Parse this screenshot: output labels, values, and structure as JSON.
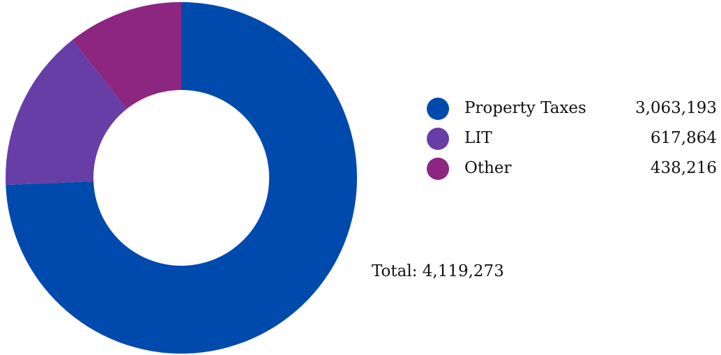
{
  "chart_data": {
    "type": "pie",
    "donut": true,
    "title": "",
    "categories": [
      "Property Taxes",
      "LIT",
      "Other"
    ],
    "values": [
      3063193,
      617864,
      438216
    ],
    "value_labels": [
      "3,063,193",
      "617,864",
      "438,216"
    ],
    "colors": [
      "#004aad",
      "#673ea6",
      "#8c2680"
    ],
    "legend_position": "right",
    "total_label": "Total: 4,119,273"
  },
  "legend": {
    "items": [
      {
        "label": "Property Taxes",
        "value": "3,063,193",
        "color": "#004aad"
      },
      {
        "label": "LIT",
        "value": "617,864",
        "color": "#673ea6"
      },
      {
        "label": "Other",
        "value": "438,216",
        "color": "#8c2680"
      }
    ]
  }
}
